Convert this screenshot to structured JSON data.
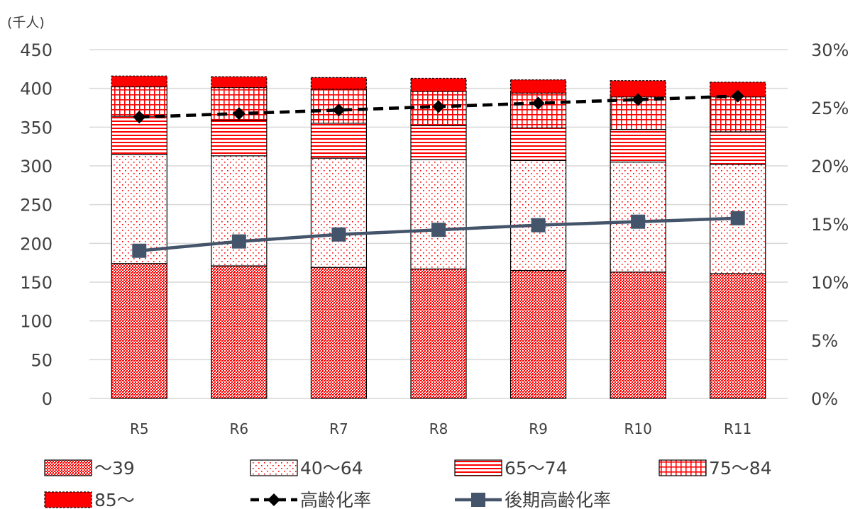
{
  "chart_data": {
    "type": "bar",
    "stacked": true,
    "unit_label": "(千人)",
    "categories": [
      "R5",
      "R6",
      "R7",
      "R8",
      "R9",
      "R10",
      "R11"
    ],
    "y_left": {
      "min": 0,
      "max": 450,
      "step": 50,
      "ticks": [
        "0",
        "50",
        "100",
        "150",
        "200",
        "250",
        "300",
        "350",
        "400",
        "450"
      ]
    },
    "y_right": {
      "min": 0,
      "max": 0.3,
      "ticks": [
        "0%",
        "5%",
        "10%",
        "15%",
        "20%",
        "25%",
        "30%"
      ]
    },
    "grid": "horizontal",
    "legend_position": "bottom",
    "series": [
      {
        "name": "～39",
        "pattern": "dense-dots",
        "color": "#ff0000",
        "values": [
          174,
          171,
          169,
          167,
          165,
          163,
          161
        ]
      },
      {
        "name": "40～64",
        "pattern": "sparse-dots",
        "color": "#ff0000",
        "values": [
          141,
          142,
          141,
          141,
          142,
          142,
          141
        ]
      },
      {
        "name": "65～74",
        "pattern": "horizontal-lines",
        "color": "#ff0000",
        "values": [
          49,
          46,
          45,
          44,
          42,
          42,
          42
        ]
      },
      {
        "name": "75～84",
        "pattern": "grid",
        "color": "#ff0000",
        "values": [
          38,
          42,
          44,
          44,
          45,
          42,
          45
        ]
      },
      {
        "name": "85～",
        "pattern": "solid",
        "color": "#ff0000",
        "values": [
          14,
          14,
          15,
          17,
          17,
          21,
          19
        ]
      }
    ],
    "lines": [
      {
        "name": "高齢化率",
        "axis": "right",
        "style": "dashed",
        "marker": "diamond",
        "color": "#000000",
        "values": [
          0.242,
          0.245,
          0.248,
          0.251,
          0.254,
          0.257,
          0.26
        ]
      },
      {
        "name": "後期高齢化率",
        "axis": "right",
        "style": "solid",
        "marker": "square",
        "color": "#44546a",
        "values": [
          0.127,
          0.135,
          0.141,
          0.145,
          0.149,
          0.152,
          0.155
        ]
      }
    ]
  }
}
